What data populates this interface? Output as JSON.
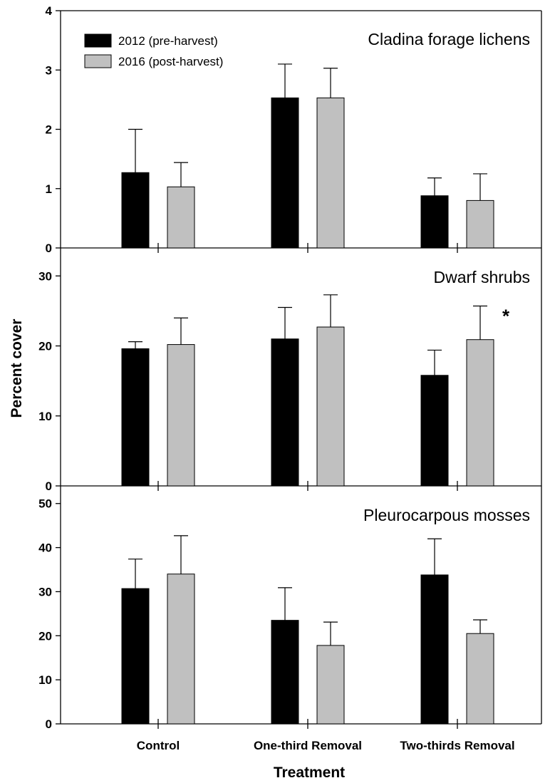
{
  "chart_data": {
    "type": "bar",
    "ylabel": "Percent cover",
    "xlabel": "Treatment",
    "categories": [
      "Control",
      "One-third Removal",
      "Two-thirds Removal"
    ],
    "legend": {
      "placement": "top-left",
      "entries": [
        {
          "name": "2012 (pre-harvest)",
          "color": "#000000"
        },
        {
          "name": "2016 (post-harvest)",
          "color": "#c0c0c0"
        }
      ]
    },
    "panels": [
      {
        "title": "Cladina forage lichens",
        "ylim": [
          0,
          4
        ],
        "yticks": [
          0,
          1,
          2,
          3,
          4
        ],
        "series": [
          {
            "name": "2012 (pre-harvest)",
            "values": [
              1.27,
              2.53,
              0.88
            ],
            "errors": [
              0.73,
              0.57,
              0.3
            ]
          },
          {
            "name": "2016 (post-harvest)",
            "values": [
              1.03,
              2.53,
              0.8
            ],
            "errors": [
              0.41,
              0.5,
              0.45
            ]
          }
        ],
        "annotations": []
      },
      {
        "title": "Dwarf shrubs",
        "ylim": [
          0,
          34
        ],
        "yticks": [
          0,
          10,
          20,
          30
        ],
        "series": [
          {
            "name": "2012 (pre-harvest)",
            "values": [
              19.6,
              21.0,
              15.8
            ],
            "errors": [
              1.0,
              4.5,
              3.6
            ]
          },
          {
            "name": "2016 (post-harvest)",
            "values": [
              20.2,
              22.7,
              20.9
            ],
            "errors": [
              3.8,
              4.6,
              4.8
            ]
          }
        ],
        "annotations": [
          {
            "text": "*",
            "category": "Two-thirds Removal"
          }
        ]
      },
      {
        "title": "Pleurocarpous mosses",
        "ylim": [
          0,
          54
        ],
        "yticks": [
          0,
          10,
          20,
          30,
          40,
          50
        ],
        "series": [
          {
            "name": "2012 (pre-harvest)",
            "values": [
              30.7,
              23.5,
              33.8
            ],
            "errors": [
              6.7,
              7.4,
              8.2
            ]
          },
          {
            "name": "2016 (post-harvest)",
            "values": [
              34.0,
              17.8,
              20.5
            ],
            "errors": [
              8.7,
              5.3,
              3.1
            ]
          }
        ],
        "annotations": []
      }
    ]
  }
}
